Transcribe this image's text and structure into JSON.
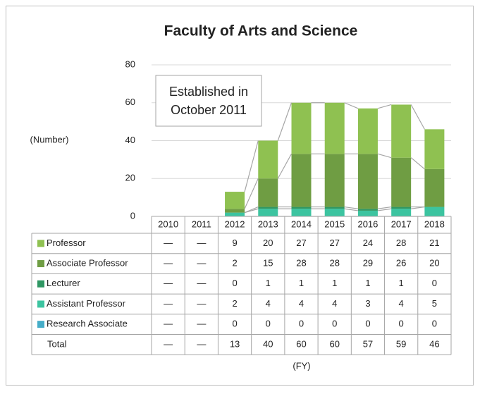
{
  "chart_data": {
    "type": "stacked_bar",
    "title": "Faculty of Arts and Science",
    "y_label": "(Number)",
    "x_label": "(FY)",
    "annotation": [
      "Established in",
      "October 2011"
    ],
    "categories": [
      "2010",
      "2011",
      "2012",
      "2013",
      "2014",
      "2015",
      "2016",
      "2017",
      "2018"
    ],
    "series": [
      {
        "name": "Professor",
        "color": "#8fc151",
        "values": [
          null,
          null,
          9,
          20,
          27,
          27,
          24,
          28,
          21
        ],
        "value_labels": [
          "—",
          "—",
          "9",
          "20",
          "27",
          "27",
          "24",
          "28",
          "21"
        ]
      },
      {
        "name": "Associate Professor",
        "color": "#6f9d43",
        "values": [
          null,
          null,
          2,
          15,
          28,
          28,
          29,
          26,
          20
        ],
        "value_labels": [
          "—",
          "—",
          "2",
          "15",
          "28",
          "28",
          "29",
          "26",
          "20"
        ]
      },
      {
        "name": "Lecturer",
        "color": "#2f9763",
        "values": [
          null,
          null,
          0,
          1,
          1,
          1,
          1,
          1,
          0
        ],
        "value_labels": [
          "—",
          "—",
          "0",
          "1",
          "1",
          "1",
          "1",
          "1",
          "0"
        ]
      },
      {
        "name": "Assistant Professor",
        "color": "#3cc4a0",
        "values": [
          null,
          null,
          2,
          4,
          4,
          4,
          3,
          4,
          5
        ],
        "value_labels": [
          "—",
          "—",
          "2",
          "4",
          "4",
          "4",
          "3",
          "4",
          "5"
        ]
      },
      {
        "name": "Research Associate",
        "color": "#45adc8",
        "values": [
          null,
          null,
          0,
          0,
          0,
          0,
          0,
          0,
          0
        ],
        "value_labels": [
          "—",
          "—",
          "0",
          "0",
          "0",
          "0",
          "0",
          "0",
          "0"
        ]
      }
    ],
    "total": {
      "name": "Total",
      "values": [
        null,
        null,
        13,
        40,
        60,
        60,
        57,
        59,
        46
      ],
      "value_labels": [
        "—",
        "—",
        "13",
        "40",
        "60",
        "60",
        "57",
        "59",
        "46"
      ]
    },
    "ylim": [
      0,
      80
    ],
    "yticks": [
      0,
      20,
      40,
      60,
      80
    ],
    "grid": true
  }
}
